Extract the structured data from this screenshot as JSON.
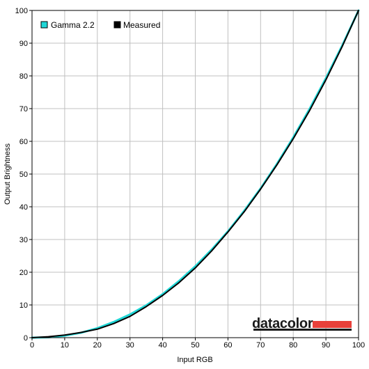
{
  "colors": {
    "gamma": "#1fd6d6",
    "measured": "#000000",
    "grid": "#c0c0c0",
    "frame": "#000000",
    "logo_bar": "#e8403a",
    "logo_underline": "#1a1a1a"
  },
  "logo": {
    "text": "datacolor"
  },
  "chart_data": {
    "type": "line",
    "xlabel": "Input RGB",
    "ylabel": "Output Brightness",
    "xlim": [
      0,
      100
    ],
    "ylim": [
      0,
      100
    ],
    "xticks": [
      0,
      10,
      20,
      30,
      40,
      50,
      60,
      70,
      80,
      90,
      100
    ],
    "yticks": [
      0,
      10,
      20,
      30,
      40,
      50,
      60,
      70,
      80,
      90,
      100
    ],
    "grid": true,
    "legend_position": "top-left",
    "series": [
      {
        "name": "Gamma 2.2",
        "color": "#1fd6d6",
        "x": [
          0,
          5,
          10,
          15,
          20,
          25,
          30,
          35,
          40,
          45,
          50,
          55,
          60,
          65,
          70,
          75,
          80,
          85,
          90,
          95,
          100
        ],
        "y": [
          0,
          0.1,
          0.6,
          1.5,
          2.9,
          4.8,
          7.1,
          9.9,
          13.3,
          17.3,
          21.8,
          26.9,
          32.5,
          38.8,
          45.6,
          53.1,
          61.2,
          69.9,
          79.3,
          89.3,
          100
        ]
      },
      {
        "name": "Measured",
        "color": "#000000",
        "x": [
          0,
          5,
          10,
          15,
          20,
          25,
          30,
          35,
          40,
          45,
          50,
          55,
          60,
          65,
          70,
          75,
          80,
          85,
          90,
          95,
          100
        ],
        "y": [
          0,
          0.3,
          0.8,
          1.6,
          2.6,
          4.3,
          6.5,
          9.5,
          12.9,
          16.8,
          21.3,
          26.5,
          32.3,
          38.5,
          45.4,
          52.8,
          60.8,
          69.4,
          78.8,
          89.0,
          100
        ]
      }
    ]
  }
}
